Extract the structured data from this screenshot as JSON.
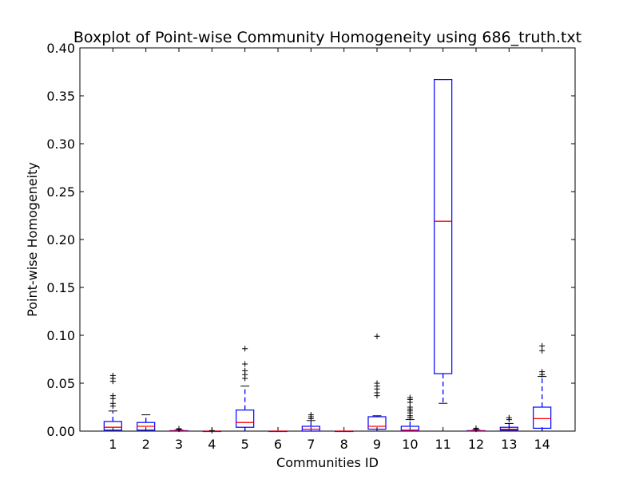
{
  "chart_data": {
    "type": "boxplot",
    "title": "Boxplot of Point-wise Community Homogeneity using 686_truth.txt",
    "xlabel": "Communities ID",
    "ylabel": "Point-wise Homogeneity",
    "ylim": [
      0,
      0.4
    ],
    "yticks": [
      "0.00",
      "0.05",
      "0.10",
      "0.15",
      "0.20",
      "0.25",
      "0.30",
      "0.35",
      "0.40"
    ],
    "grid": false,
    "colors": {
      "box": "#0000ff",
      "median": "#ff0000",
      "whisker": "#0000ff",
      "cap": "#000000",
      "flier": "#000000"
    },
    "categories": [
      "1",
      "2",
      "3",
      "4",
      "5",
      "6",
      "7",
      "8",
      "9",
      "10",
      "11",
      "12",
      "13",
      "14"
    ],
    "boxes": [
      {
        "id": "1",
        "whislo": 0.0,
        "q1": 0.001,
        "med": 0.004,
        "q3": 0.01,
        "whishi": 0.021,
        "fliers": [
          0.026,
          0.029,
          0.034,
          0.037,
          0.052,
          0.055,
          0.058
        ]
      },
      {
        "id": "2",
        "whislo": 0.0,
        "q1": 0.001,
        "med": 0.005,
        "q3": 0.009,
        "whishi": 0.017,
        "fliers": []
      },
      {
        "id": "3",
        "whislo": 0.0,
        "q1": 0.0,
        "med": 0.0,
        "q3": 0.0005,
        "whishi": 0.001,
        "fliers": [
          0.002,
          0.0025
        ]
      },
      {
        "id": "4",
        "whislo": 0.0,
        "q1": 0.0,
        "med": 0.0,
        "q3": 0.0,
        "whishi": 0.0,
        "fliers": [
          0.0005
        ]
      },
      {
        "id": "5",
        "whislo": 0.0,
        "q1": 0.004,
        "med": 0.009,
        "q3": 0.022,
        "whishi": 0.047,
        "fliers": [
          0.055,
          0.059,
          0.063,
          0.07,
          0.086
        ]
      },
      {
        "id": "6",
        "whislo": 0.0,
        "q1": 0.0,
        "med": 0.0,
        "q3": 0.0,
        "whishi": 0.0,
        "fliers": []
      },
      {
        "id": "7",
        "whislo": 0.0,
        "q1": 0.0,
        "med": 0.002,
        "q3": 0.005,
        "whishi": 0.011,
        "fliers": [
          0.013,
          0.015,
          0.017
        ]
      },
      {
        "id": "8",
        "whislo": 0.0,
        "q1": 0.0,
        "med": 0.0,
        "q3": 0.0,
        "whishi": 0.0,
        "fliers": []
      },
      {
        "id": "9",
        "whislo": 0.0,
        "q1": 0.002,
        "med": 0.005,
        "q3": 0.015,
        "whishi": 0.016,
        "fliers": [
          0.037,
          0.04,
          0.044,
          0.047,
          0.05,
          0.099
        ]
      },
      {
        "id": "10",
        "whislo": 0.0,
        "q1": 0.0,
        "med": 0.001,
        "q3": 0.005,
        "whishi": 0.012,
        "fliers": [
          0.014,
          0.016,
          0.019,
          0.021,
          0.023,
          0.025,
          0.03,
          0.033,
          0.035
        ]
      },
      {
        "id": "11",
        "whislo": 0.029,
        "q1": 0.06,
        "med": 0.219,
        "q3": 0.367,
        "whishi": 0.367,
        "fliers": []
      },
      {
        "id": "12",
        "whislo": 0.0,
        "q1": 0.0,
        "med": 0.0,
        "q3": 0.0005,
        "whishi": 0.001,
        "fliers": [
          0.002,
          0.003
        ]
      },
      {
        "id": "13",
        "whislo": 0.0,
        "q1": 0.001,
        "med": 0.002,
        "q3": 0.004,
        "whishi": 0.008,
        "fliers": [
          0.012,
          0.014
        ]
      },
      {
        "id": "14",
        "whislo": 0.0,
        "q1": 0.003,
        "med": 0.013,
        "q3": 0.025,
        "whishi": 0.057,
        "fliers": [
          0.059,
          0.062,
          0.084,
          0.089
        ]
      }
    ]
  }
}
